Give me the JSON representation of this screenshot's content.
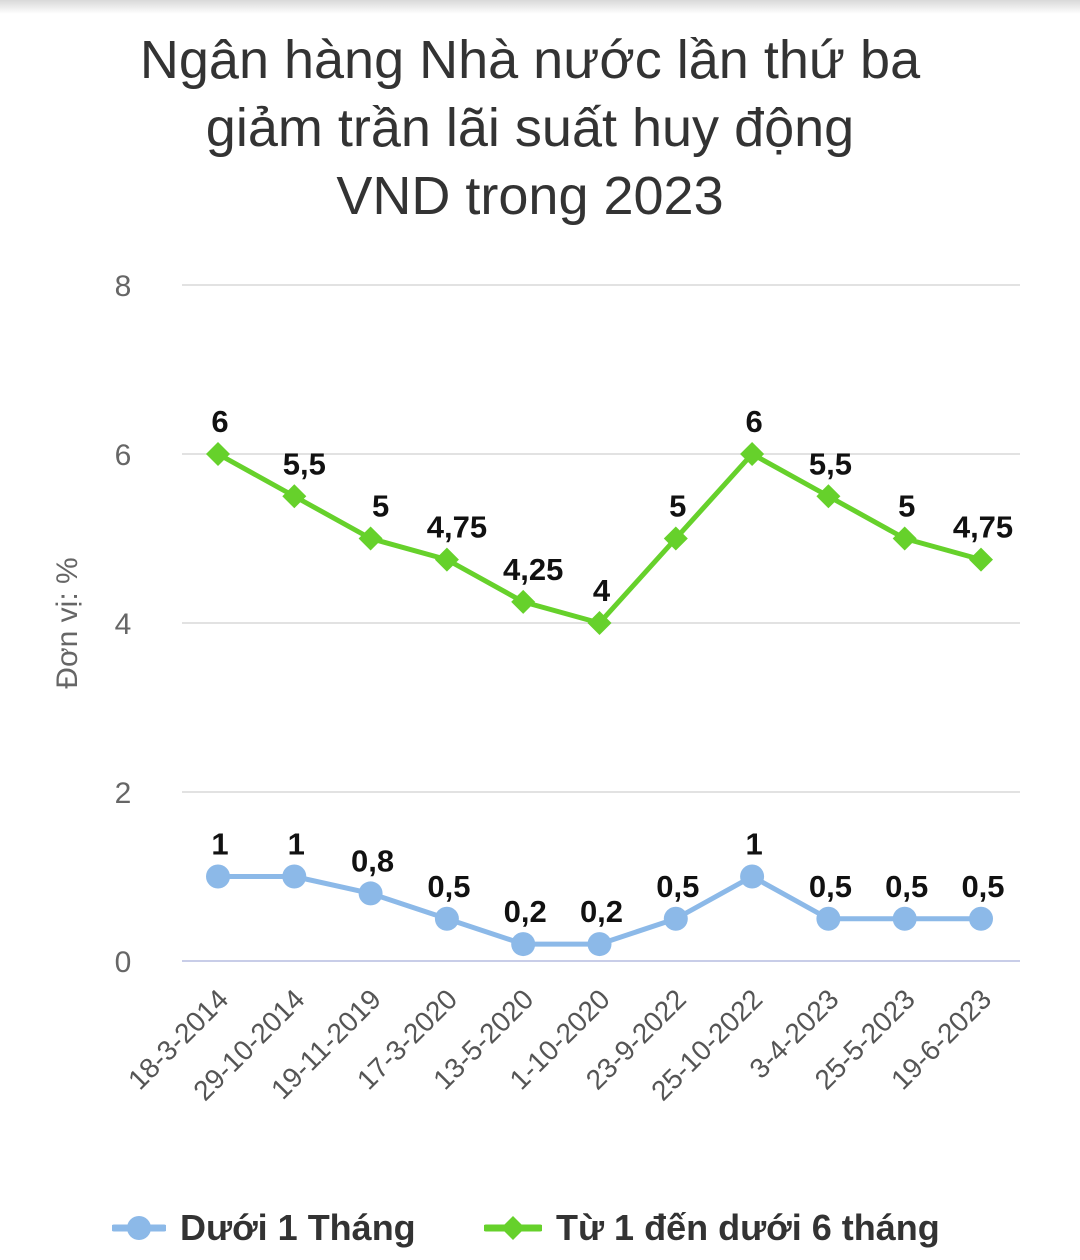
{
  "title_lines": [
    "Ngân hàng Nhà nước lần thứ ba",
    "giảm trần lãi suất huy động",
    "VND trong 2023"
  ],
  "chart_data": {
    "type": "line",
    "title": "Ngân hàng Nhà nước lần thứ ba giảm trần lãi suất huy động VND trong 2023",
    "ylabel": "Đơn vị: %",
    "xlabel": "",
    "ylim": [
      0,
      8
    ],
    "yticks": [
      "0",
      "2",
      "4",
      "6",
      "8"
    ],
    "ytick_values": [
      0,
      2,
      4,
      6,
      8
    ],
    "grid": true,
    "legend_position": "bottom",
    "categories": [
      "18-3-2014",
      "29-10-2014",
      "19-11-2019",
      "17-3-2020",
      "13-5-2020",
      "1-10-2020",
      "23-9-2022",
      "25-10-2022",
      "3-4-2023",
      "25-5-2023",
      "19-6-2023"
    ],
    "series": [
      {
        "name": "Dưới 1 Tháng",
        "color": "#8cb9e8",
        "marker": "circle",
        "values": [
          1,
          1,
          0.8,
          0.5,
          0.2,
          0.2,
          0.5,
          1,
          0.5,
          0.5,
          0.5
        ],
        "labels": [
          "1",
          "1",
          "0,8",
          "0,5",
          "0,2",
          "0,2",
          "0,5",
          "1",
          "0,5",
          "0,5",
          "0,5"
        ]
      },
      {
        "name": "Từ 1 đến dưới 6 tháng",
        "color": "#66d12b",
        "marker": "diamond",
        "values": [
          6,
          5.5,
          5,
          4.75,
          4.25,
          4,
          5,
          6,
          5.5,
          5,
          4.75
        ],
        "labels": [
          "6",
          "5,5",
          "5",
          "4,75",
          "4,25",
          "4",
          "5",
          "6",
          "5,5",
          "5",
          "4,75"
        ]
      }
    ]
  }
}
